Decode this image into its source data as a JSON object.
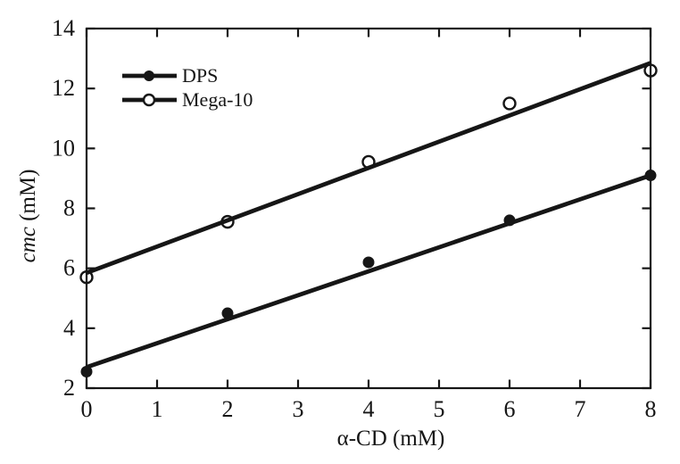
{
  "figure": {
    "background": "#ffffff",
    "ink_color": "#161616"
  },
  "chart_data": {
    "type": "scatter",
    "title": "",
    "xlabel": "α-CD (mM)",
    "ylabel": "cmc (mM)",
    "ylabel_italic_prefix": "cmc",
    "ylabel_suffix": " (mM)",
    "xlim": [
      0,
      8
    ],
    "ylim": [
      2,
      14
    ],
    "xticks": [
      0,
      1,
      2,
      3,
      4,
      5,
      6,
      7,
      8
    ],
    "yticks": [
      2,
      4,
      6,
      8,
      10,
      12,
      14
    ],
    "grid": false,
    "tick_style": "inward-all-four-sides",
    "legend": {
      "position": "upper-left-inside"
    },
    "x": [
      0,
      2,
      4,
      6,
      8
    ],
    "series": [
      {
        "name": "DPS",
        "marker": "filled-circle",
        "values": [
          2.55,
          4.5,
          6.2,
          7.6,
          9.1
        ],
        "fit_line": {
          "x0": 0,
          "y0": 2.7,
          "x1": 8,
          "y1": 9.1
        }
      },
      {
        "name": "Mega-10",
        "marker": "open-circle",
        "values": [
          5.7,
          7.55,
          9.55,
          11.5,
          12.6
        ],
        "fit_line": {
          "x0": 0,
          "y0": 5.85,
          "x1": 8,
          "y1": 12.85
        }
      }
    ]
  }
}
